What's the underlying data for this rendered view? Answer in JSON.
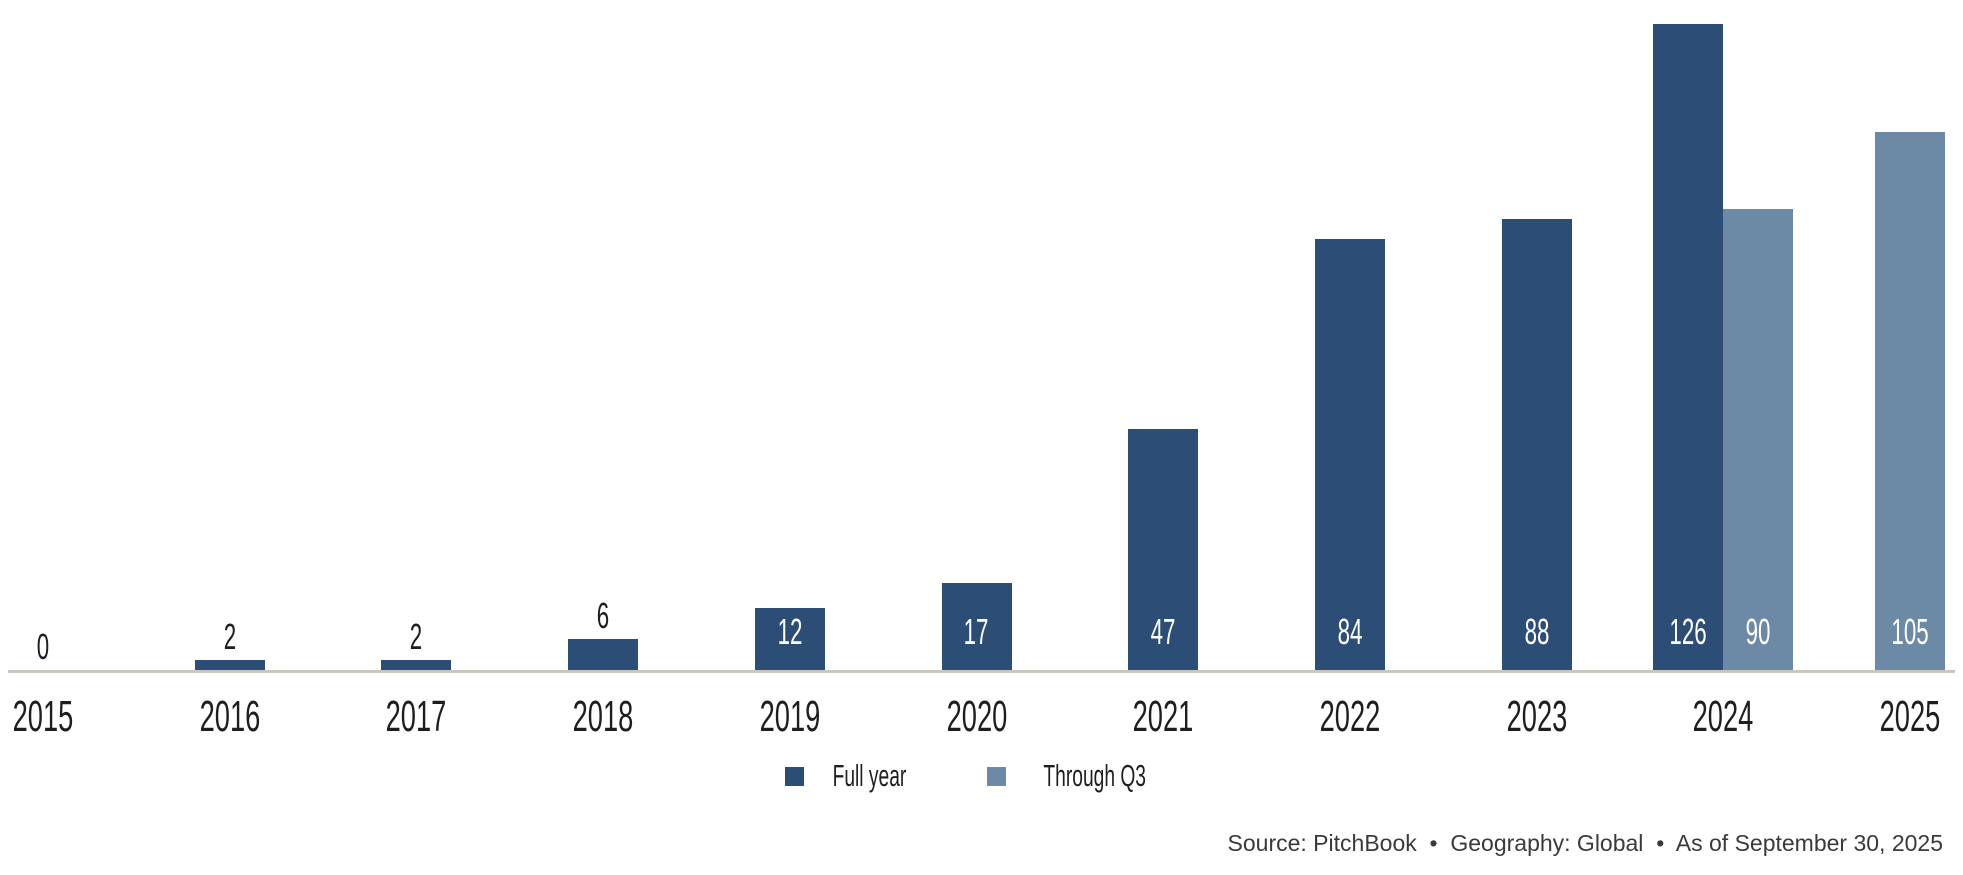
{
  "chart_data": {
    "type": "bar",
    "title": "",
    "xlabel": "",
    "ylabel": "",
    "categories": [
      "2015",
      "2016",
      "2017",
      "2018",
      "2019",
      "2020",
      "2021",
      "2022",
      "2023",
      "2024",
      "2025"
    ],
    "series": [
      {
        "name": "Full year",
        "color": "#2C4D76",
        "values": [
          0,
          2,
          2,
          6,
          12,
          17,
          47,
          84,
          88,
          126,
          null
        ]
      },
      {
        "name": "Through Q3",
        "color": "#6C89A6",
        "values": [
          null,
          null,
          null,
          null,
          null,
          null,
          null,
          null,
          null,
          90,
          105
        ]
      }
    ],
    "ylim": [
      0,
      126
    ],
    "grid": false,
    "axis_line_color": "#C9C6C0",
    "value_label_style": "inside-base-white-or-above-dark",
    "legend_position": "bottom-center"
  },
  "footer": {
    "source_text": "Source: PitchBook  •  Geography: Global  •  As of September 30, 2025"
  },
  "colors": {
    "full_year": "#2C4D76",
    "through_q3": "#6C89A6",
    "axis_line": "#C9C6C0",
    "label_dark": "#1E1E1E",
    "label_light": "#FFFFFF",
    "source_text": "#3A3A3A"
  }
}
